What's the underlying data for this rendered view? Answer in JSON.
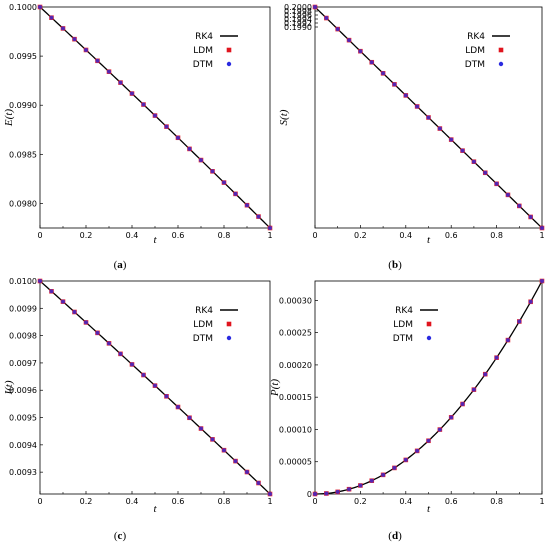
{
  "colors": {
    "rk4": "#000000",
    "ldm": "#e0141e",
    "dtm": "#2a2ae0",
    "frame": "#000000"
  },
  "chart_data": [
    {
      "type": "line",
      "panel": "(a)",
      "caption_letter": "a",
      "xlabel": "t",
      "ylabel": "E(t)",
      "xlim": [
        0,
        1
      ],
      "ylim": [
        0.09775,
        0.1
      ],
      "x_ticks": [
        "0",
        "0.2",
        "0.4",
        "0.6",
        "0.8",
        "1"
      ],
      "y_tick_values": [
        0.098,
        0.0985,
        0.099,
        0.0995,
        0.1
      ],
      "y_tick_labels": [
        "0.0980",
        "0.0985",
        "0.0990",
        "0.0995",
        "0.1000"
      ],
      "curve": {
        "start": 0.1,
        "end": 0.09775,
        "kind": "linear_slight_convex"
      },
      "legend_position": "top-right",
      "series": [
        {
          "name": "RK4",
          "style": "line"
        },
        {
          "name": "LDM",
          "style": "square markers"
        },
        {
          "name": "DTM",
          "style": "circle markers"
        }
      ]
    },
    {
      "type": "line",
      "panel": "(b)",
      "caption_letter": "b",
      "xlabel": "t",
      "ylabel": "S(t)",
      "xlim": [
        0,
        1
      ],
      "ylim": [
        0.18895,
        0.2
      ],
      "x_ticks": [
        "0",
        "0.2",
        "0.4",
        "0.6",
        "0.8",
        "1"
      ],
      "y_tick_values": [
        0.199,
        0.1992,
        0.1994,
        0.1996,
        0.1998,
        0.2
      ],
      "y_tick_labels": [
        "0.1990",
        "0.1992",
        "0.1994",
        "0.1996",
        "0.1998",
        "0.2000"
      ],
      "curve": {
        "start": 0.2,
        "end": 0.18895,
        "kind": "linear"
      },
      "legend_position": "top-right",
      "series": [
        {
          "name": "RK4",
          "style": "line"
        },
        {
          "name": "LDM",
          "style": "square markers"
        },
        {
          "name": "DTM",
          "style": "circle markers"
        }
      ]
    },
    {
      "type": "line",
      "panel": "(c)",
      "caption_letter": "c",
      "xlabel": "t",
      "ylabel": "I(t)",
      "xlim": [
        0,
        1
      ],
      "ylim": [
        0.00922,
        0.01
      ],
      "x_ticks": [
        "0",
        "0.2",
        "0.4",
        "0.6",
        "0.8",
        "1"
      ],
      "y_tick_values": [
        0.0093,
        0.0094,
        0.0095,
        0.0096,
        0.0097,
        0.0098,
        0.0099,
        0.01
      ],
      "y_tick_labels": [
        "0.0093",
        "0.0094",
        "0.0095",
        "0.0096",
        "0.0097",
        "0.0098",
        "0.0099",
        "0.0100"
      ],
      "curve": {
        "start": 0.01,
        "end": 0.00922,
        "kind": "linear_slight_convex"
      },
      "legend_position": "top-right",
      "series": [
        {
          "name": "RK4",
          "style": "line"
        },
        {
          "name": "LDM",
          "style": "square markers"
        },
        {
          "name": "DTM",
          "style": "circle markers"
        }
      ]
    },
    {
      "type": "line",
      "panel": "(d)",
      "caption_letter": "d",
      "xlabel": "t",
      "ylabel": "P(t)",
      "xlim": [
        0,
        1
      ],
      "ylim": [
        0,
        0.00033
      ],
      "x_ticks": [
        "0",
        "0.2",
        "0.4",
        "0.6",
        "0.8",
        "1"
      ],
      "y_tick_values": [
        0,
        5e-05,
        0.0001,
        0.00015,
        0.0002,
        0.00025,
        0.0003
      ],
      "y_tick_labels": [
        "0",
        "0.00005",
        "0.00010",
        "0.00015",
        "0.00020",
        "0.00025",
        "0.00030"
      ],
      "curve": {
        "start": 0,
        "end": 0.00033,
        "kind": "quadratic"
      },
      "legend_position": "top-left",
      "series": [
        {
          "name": "RK4",
          "style": "line"
        },
        {
          "name": "LDM",
          "style": "square markers"
        },
        {
          "name": "DTM",
          "style": "circle markers"
        }
      ]
    }
  ]
}
